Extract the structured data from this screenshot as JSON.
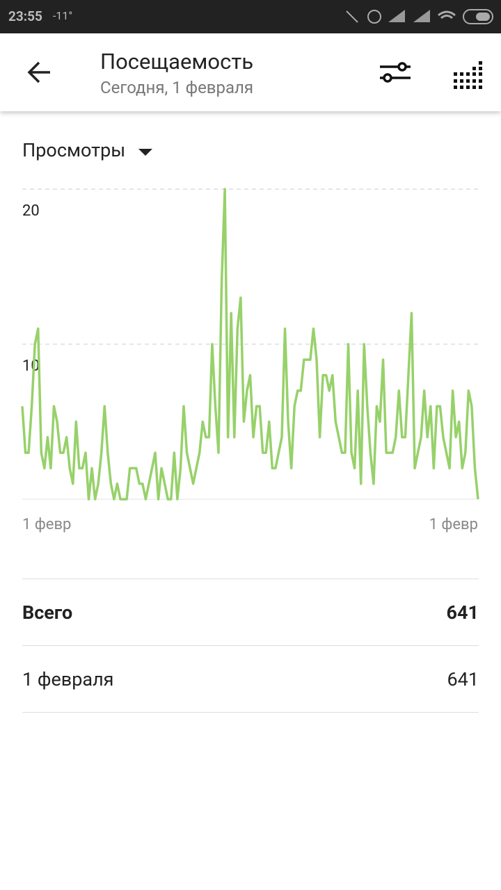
{
  "status_bar": {
    "time": "23:55",
    "temperature": "-11°"
  },
  "header": {
    "title": "Посещаемость",
    "subtitle": "Сегодня, 1 февраля"
  },
  "metric_selector": "Просмотры",
  "chart_data": {
    "type": "line",
    "categories": [
      "1 февр",
      null,
      null,
      null,
      null,
      null,
      null,
      null,
      null,
      null,
      null,
      null,
      null,
      null,
      null,
      null,
      null,
      null,
      null,
      null,
      null,
      null,
      null,
      null,
      null,
      null,
      null,
      null,
      null,
      null,
      null,
      null,
      null,
      null,
      null,
      null,
      null,
      null,
      null,
      null,
      null,
      null,
      null,
      null,
      null,
      null,
      null,
      null,
      null,
      null,
      null,
      null,
      null,
      null,
      null,
      null,
      null,
      null,
      null,
      null,
      null,
      null,
      null,
      null,
      null,
      null,
      null,
      null,
      null,
      null,
      null,
      null,
      null,
      null,
      null,
      null,
      null,
      null,
      null,
      null,
      null,
      null,
      null,
      null,
      null,
      null,
      null,
      null,
      null,
      null,
      null,
      null,
      null,
      null,
      null,
      null,
      null,
      null,
      null,
      null,
      null,
      null,
      null,
      null,
      null,
      null,
      null,
      null,
      null,
      null,
      null,
      null,
      null,
      null,
      null,
      null,
      null,
      null,
      null,
      null,
      null,
      null,
      null,
      null,
      null,
      null,
      null,
      null,
      null,
      null,
      null,
      null,
      null,
      null,
      null,
      null,
      null,
      null,
      null,
      null,
      null,
      null,
      null,
      null,
      "1 февр"
    ],
    "values": [
      6,
      3,
      3,
      6,
      10,
      11,
      3,
      2,
      4,
      2,
      6,
      5,
      3,
      3,
      4,
      2,
      1,
      5,
      2,
      2,
      3,
      0,
      2,
      0,
      1,
      3,
      6,
      3,
      1,
      0,
      1,
      0,
      0,
      0,
      2,
      2,
      2,
      1,
      1,
      0,
      1,
      2,
      3,
      0,
      2,
      1,
      0,
      0,
      3,
      0,
      2,
      6,
      3,
      2,
      1,
      2,
      3,
      5,
      4,
      4,
      10,
      6,
      3,
      14,
      20,
      4,
      12,
      4,
      11,
      13,
      5,
      7,
      8,
      4,
      6,
      6,
      3,
      3,
      5,
      2,
      2,
      3,
      4,
      11,
      5,
      2,
      6,
      7,
      7,
      9,
      9,
      9,
      11,
      9,
      4,
      8,
      8,
      7,
      8,
      5,
      4,
      3,
      3,
      10,
      3,
      2,
      7,
      1,
      10,
      6,
      3,
      1,
      6,
      5,
      9,
      3,
      3,
      3,
      4,
      7,
      4,
      4,
      8,
      12,
      2,
      3,
      4,
      7,
      4,
      6,
      2,
      6,
      6,
      4,
      3,
      2,
      7,
      4,
      5,
      2,
      3,
      7,
      6,
      2,
      0
    ],
    "color": "#97d16a",
    "ylim": [
      0,
      20
    ],
    "yticks": [
      10,
      20
    ],
    "grid": true
  },
  "table": {
    "rows": [
      [
        "Всего",
        641
      ],
      [
        "1 февраля",
        641
      ]
    ]
  }
}
